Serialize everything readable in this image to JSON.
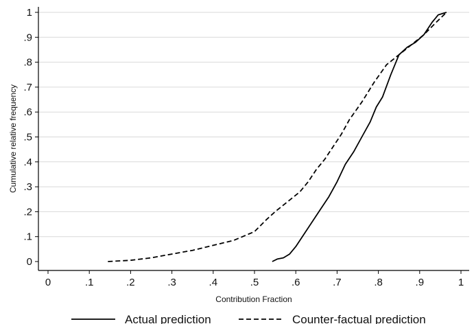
{
  "chart_data": {
    "type": "line",
    "xlabel": "Contribution Fraction",
    "ylabel": "Cumulative relative frequency",
    "xlim": [
      -0.02,
      1.01
    ],
    "ylim": [
      0,
      1
    ],
    "x_ticks": [
      0,
      0.1,
      0.2,
      0.3,
      0.4,
      0.5,
      0.6,
      0.7,
      0.8,
      0.9,
      1
    ],
    "x_tick_labels": [
      "0",
      ".1",
      ".2",
      ".3",
      ".4",
      ".5",
      ".6",
      ".7",
      ".8",
      ".9",
      "1"
    ],
    "y_ticks": [
      0,
      0.1,
      0.2,
      0.3,
      0.4,
      0.5,
      0.6,
      0.7,
      0.8,
      0.9,
      1
    ],
    "y_tick_labels": [
      "0",
      ".1",
      ".2",
      ".3",
      ".4",
      ".5",
      ".6",
      ".7",
      ".8",
      ".9",
      "1"
    ],
    "grid": "horizontal",
    "legend_position": "bottom",
    "series": [
      {
        "name": "Actual prediction",
        "style": "solid",
        "color": "#000000",
        "points": [
          [
            0.543,
            0.0
          ],
          [
            0.555,
            0.01
          ],
          [
            0.57,
            0.015
          ],
          [
            0.585,
            0.03
          ],
          [
            0.6,
            0.06
          ],
          [
            0.62,
            0.11
          ],
          [
            0.64,
            0.16
          ],
          [
            0.66,
            0.21
          ],
          [
            0.68,
            0.26
          ],
          [
            0.7,
            0.32
          ],
          [
            0.72,
            0.39
          ],
          [
            0.74,
            0.44
          ],
          [
            0.76,
            0.5
          ],
          [
            0.78,
            0.56
          ],
          [
            0.795,
            0.62
          ],
          [
            0.81,
            0.66
          ],
          [
            0.83,
            0.75
          ],
          [
            0.85,
            0.83
          ],
          [
            0.87,
            0.86
          ],
          [
            0.89,
            0.88
          ],
          [
            0.91,
            0.91
          ],
          [
            0.93,
            0.96
          ],
          [
            0.945,
            0.99
          ],
          [
            0.965,
            1.0
          ]
        ]
      },
      {
        "name": "Counter-factual prediction",
        "style": "dashed",
        "color": "#000000",
        "points": [
          [
            0.145,
            0.0
          ],
          [
            0.2,
            0.005
          ],
          [
            0.25,
            0.015
          ],
          [
            0.3,
            0.03
          ],
          [
            0.35,
            0.045
          ],
          [
            0.4,
            0.065
          ],
          [
            0.45,
            0.085
          ],
          [
            0.5,
            0.12
          ],
          [
            0.53,
            0.17
          ],
          [
            0.55,
            0.2
          ],
          [
            0.58,
            0.24
          ],
          [
            0.61,
            0.28
          ],
          [
            0.63,
            0.32
          ],
          [
            0.65,
            0.37
          ],
          [
            0.67,
            0.41
          ],
          [
            0.69,
            0.46
          ],
          [
            0.71,
            0.51
          ],
          [
            0.73,
            0.57
          ],
          [
            0.76,
            0.64
          ],
          [
            0.79,
            0.72
          ],
          [
            0.82,
            0.79
          ],
          [
            0.85,
            0.83
          ],
          [
            0.88,
            0.87
          ],
          [
            0.91,
            0.91
          ],
          [
            0.94,
            0.96
          ],
          [
            0.965,
            1.0
          ]
        ]
      }
    ]
  }
}
